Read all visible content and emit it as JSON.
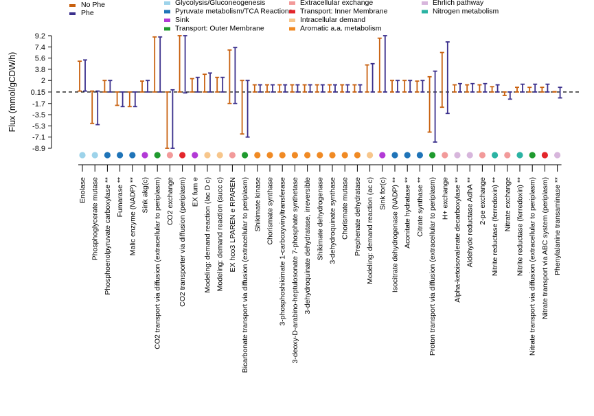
{
  "chart_data": {
    "type": "range-bar",
    "ylabel": "Flux (mmol/gCDW/h)",
    "y_ticks": [
      "9.2",
      "7.4",
      "5.6",
      "3.8",
      "2",
      "0.15",
      "-1.7",
      "-3.5",
      "-5.3",
      "-7.1",
      "-8.9"
    ],
    "ylim": [
      -8.9,
      9.2
    ],
    "reference_line": 0.15,
    "series_legend": [
      {
        "name": "No Phe",
        "color": "#c8600f"
      },
      {
        "name": "Phe",
        "color": "#3a2f8c"
      }
    ],
    "category_legend": [
      {
        "name": "Glycolysis/Gluconeogenesis",
        "color": "#9dd3ea"
      },
      {
        "name": "Pyruvate metabolism/TCA Reactions",
        "color": "#1f74b8"
      },
      {
        "name": "Sink",
        "color": "#b23ad6"
      },
      {
        "name": "Transport: Outer Membrane",
        "color": "#1f9a2e"
      },
      {
        "name": "Extracellular exchange",
        "color": "#f29a9a"
      },
      {
        "name": "Transport: Inner Membrane",
        "color": "#e3262b"
      },
      {
        "name": "Intracellular demand",
        "color": "#f7c68b"
      },
      {
        "name": "Aromatic a.a. metabolism",
        "color": "#f08a24"
      },
      {
        "name": "Ehrlich pathway",
        "color": "#d7b6dc"
      },
      {
        "name": "Nitrogen metabolism",
        "color": "#2bb3a3"
      }
    ],
    "reactions": [
      {
        "name": "Enolase",
        "cat": 0,
        "nophe": [
          0.3,
          5.1
        ],
        "phe": [
          0.3,
          5.3
        ]
      },
      {
        "name": "Phosphoglycerate mutase",
        "cat": 0,
        "nophe": [
          -4.9,
          0.3
        ],
        "phe": [
          -5.1,
          0.3
        ]
      },
      {
        "name": "Phosphoenolpyruvate carboxylase **",
        "cat": 1,
        "nophe": [
          0.15,
          2.0
        ],
        "phe": [
          0.15,
          2.0
        ]
      },
      {
        "name": "Fumarase **",
        "cat": 1,
        "nophe": [
          -2.0,
          0.15
        ],
        "phe": [
          -2.2,
          0.15
        ]
      },
      {
        "name": "Malic enzyme (NADP) **",
        "cat": 1,
        "nophe": [
          -2.2,
          0.15
        ],
        "phe": [
          -2.2,
          0.15
        ]
      },
      {
        "name": "Sink akg(c)",
        "cat": 2,
        "nophe": [
          0.15,
          1.9
        ],
        "phe": [
          0.15,
          2.0
        ]
      },
      {
        "name": "CO2 transport via diffusion (extracellular to periplasm)",
        "cat": 3,
        "nophe": [
          0.15,
          9.0
        ],
        "phe": [
          0.15,
          9.0
        ]
      },
      {
        "name": "CO2 exchange",
        "cat": 4,
        "nophe": [
          -8.9,
          0.15
        ],
        "phe": [
          -8.9,
          0.5
        ]
      },
      {
        "name": "CO2 transporter via diffusion (periplasm)",
        "cat": 5,
        "nophe": [
          0.15,
          9.2
        ],
        "phe": [
          0.0,
          9.2
        ]
      },
      {
        "name": "EX fum e",
        "cat": 2,
        "nophe": [
          0.15,
          2.3
        ],
        "phe": [
          0.15,
          2.5
        ]
      },
      {
        "name": "Modeling: demand reaction (lac D c)",
        "cat": 6,
        "nophe": [
          0.15,
          3.0
        ],
        "phe": [
          0.15,
          3.2
        ]
      },
      {
        "name": "Modeling: demand reaction (succ c)",
        "cat": 6,
        "nophe": [
          0.15,
          2.5
        ],
        "phe": [
          0.15,
          2.5
        ]
      },
      {
        "name": "EX hco3 LPAREN e RPAREN",
        "cat": 4,
        "nophe": [
          -1.7,
          6.9
        ],
        "phe": [
          -1.7,
          7.3
        ]
      },
      {
        "name": "Bicarbonate transport via diffusion (extracellular to periplasm)",
        "cat": 3,
        "nophe": [
          -6.6,
          2.0
        ],
        "phe": [
          -7.1,
          2.0
        ]
      },
      {
        "name": "Shikimate kinase",
        "cat": 7,
        "nophe": [
          0.15,
          1.3
        ],
        "phe": [
          0.15,
          1.3
        ]
      },
      {
        "name": "Chorismate synthase",
        "cat": 7,
        "nophe": [
          0.15,
          1.3
        ],
        "phe": [
          0.15,
          1.3
        ]
      },
      {
        "name": "3-phosphoshikimate 1-carboxyvinyltransferase",
        "cat": 7,
        "nophe": [
          0.15,
          1.3
        ],
        "phe": [
          0.15,
          1.3
        ]
      },
      {
        "name": "3-deoxy-D-arabino-heptulosonate 7-phosphate synthetase",
        "cat": 7,
        "nophe": [
          0.15,
          1.3
        ],
        "phe": [
          0.15,
          1.3
        ]
      },
      {
        "name": "3-dehydroquinate dehydratase, irreversible",
        "cat": 7,
        "nophe": [
          0.15,
          1.3
        ],
        "phe": [
          0.15,
          1.3
        ]
      },
      {
        "name": "Shikimate dehydrogenase",
        "cat": 7,
        "nophe": [
          0.15,
          1.3
        ],
        "phe": [
          0.15,
          1.3
        ]
      },
      {
        "name": "3-dehydroquinate synthase",
        "cat": 7,
        "nophe": [
          0.15,
          1.3
        ],
        "phe": [
          0.15,
          1.3
        ]
      },
      {
        "name": "Chorismate mutase",
        "cat": 7,
        "nophe": [
          0.15,
          1.3
        ],
        "phe": [
          0.15,
          1.3
        ]
      },
      {
        "name": "Prephenate dehydratase",
        "cat": 7,
        "nophe": [
          0.15,
          1.3
        ],
        "phe": [
          0.15,
          1.3
        ]
      },
      {
        "name": "Modeling: demand reaction (ac c)",
        "cat": 6,
        "nophe": [
          0.15,
          4.5
        ],
        "phe": [
          0.15,
          4.7
        ]
      },
      {
        "name": "Sink for(c)",
        "cat": 2,
        "nophe": [
          0.15,
          8.8
        ],
        "phe": [
          0.15,
          9.2
        ]
      },
      {
        "name": "Isocitrate dehydrogenase (NADP) **",
        "cat": 1,
        "nophe": [
          0.15,
          2.0
        ],
        "phe": [
          0.15,
          2.0
        ]
      },
      {
        "name": "Aconitate hydratase **",
        "cat": 1,
        "nophe": [
          0.15,
          2.0
        ],
        "phe": [
          0.15,
          2.0
        ]
      },
      {
        "name": "Citrate synthase **",
        "cat": 1,
        "nophe": [
          0.15,
          1.9
        ],
        "phe": [
          0.15,
          2.0
        ]
      },
      {
        "name": "Proton transport via diffusion (extracellular to periplasm)",
        "cat": 3,
        "nophe": [
          -6.3,
          2.6
        ],
        "phe": [
          -7.9,
          3.5
        ]
      },
      {
        "name": "H+ exchange",
        "cat": 4,
        "nophe": [
          -2.3,
          6.5
        ],
        "phe": [
          -3.3,
          8.2
        ]
      },
      {
        "name": "Alpha-ketoisovalerate decarboxylase **",
        "cat": 8,
        "nophe": [
          0.15,
          1.3
        ],
        "phe": [
          0.15,
          1.5
        ]
      },
      {
        "name": "Aldehyde reductase AdhA **",
        "cat": 8,
        "nophe": [
          0.15,
          1.3
        ],
        "phe": [
          0.15,
          1.5
        ]
      },
      {
        "name": "2-pe exchange",
        "cat": 4,
        "nophe": [
          0.15,
          1.3
        ],
        "phe": [
          0.15,
          1.5
        ]
      },
      {
        "name": "Nitrite reductase (ferredoxin) **",
        "cat": 9,
        "nophe": [
          0.15,
          1.0
        ],
        "phe": [
          0.15,
          1.3
        ]
      },
      {
        "name": "Nitrate exchange",
        "cat": 4,
        "nophe": [
          -0.4,
          0.15
        ],
        "phe": [
          -1.0,
          0.15
        ]
      },
      {
        "name": "Nitrite reductase (ferredoxin) **",
        "cat": 9,
        "nophe": [
          0.15,
          0.9
        ],
        "phe": [
          0.15,
          1.4
        ]
      },
      {
        "name": "Nitrate transport via diffusion (extracellular to periplasm)",
        "cat": 3,
        "nophe": [
          0.15,
          0.9
        ],
        "phe": [
          0.15,
          1.4
        ]
      },
      {
        "name": "Nitrate transport via ABC system (periplasm)",
        "cat": 5,
        "nophe": [
          0.15,
          0.9
        ],
        "phe": [
          0.15,
          1.4
        ]
      },
      {
        "name": "Phenylalanine transaminase **",
        "cat": 8,
        "nophe": [
          0.15,
          0.2
        ],
        "phe": [
          -0.8,
          0.9
        ]
      }
    ]
  }
}
